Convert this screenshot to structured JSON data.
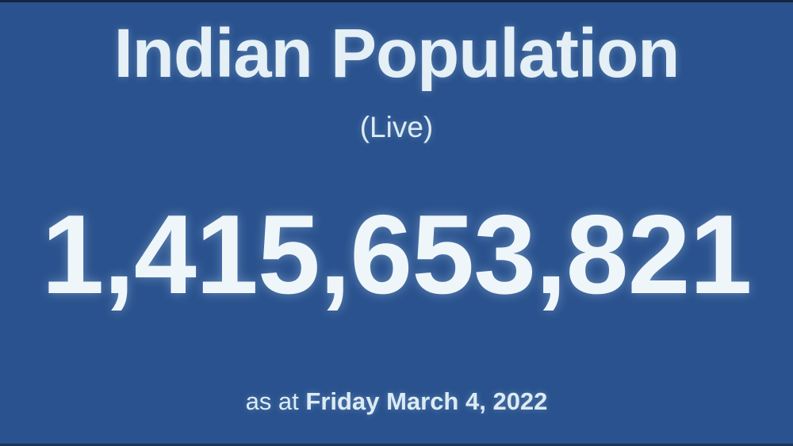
{
  "page": {
    "background_color": "#2a528e",
    "text_color": "#e8f2f8",
    "edge_bar_color": "#16263f"
  },
  "header": {
    "title": "Indian Population",
    "subtitle": "(Live)"
  },
  "counter": {
    "value": "1,415,653,821"
  },
  "footer": {
    "as_at_prefix": "as at",
    "date": "Friday March 4, 2022"
  }
}
